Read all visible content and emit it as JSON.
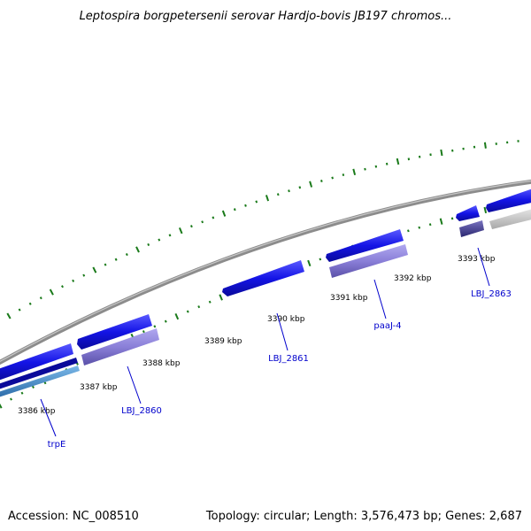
{
  "title": "Leptospira borgpetersenii serovar Hardjo-bovis JB197 chromos...",
  "footer": {
    "accession": "Accession: NC_008510",
    "summary": "Topology: circular; Length: 3,576,473 bp; Genes: 2,687"
  },
  "position_labels": [
    "3386 kbp",
    "3387 kbp",
    "3388 kbp",
    "3389 kbp",
    "3390 kbp",
    "3391 kbp",
    "3392 kbp",
    "3393 kbp"
  ],
  "gene_labels": [
    "trpE",
    "LBJ_2860",
    "LBJ_2861",
    "paaJ-4",
    "LBJ_2863"
  ],
  "colors": {
    "backbone": "#8c8c8c",
    "tick": "#1a7a1a",
    "gene_forward": "#1414e6",
    "gene_reverse": "#8a7fd8",
    "gene_dark": "#4a4596",
    "gene_grey": "#c8c8c8",
    "gene_teal": "#3a8ac8",
    "label_blue": "#0000cc"
  }
}
